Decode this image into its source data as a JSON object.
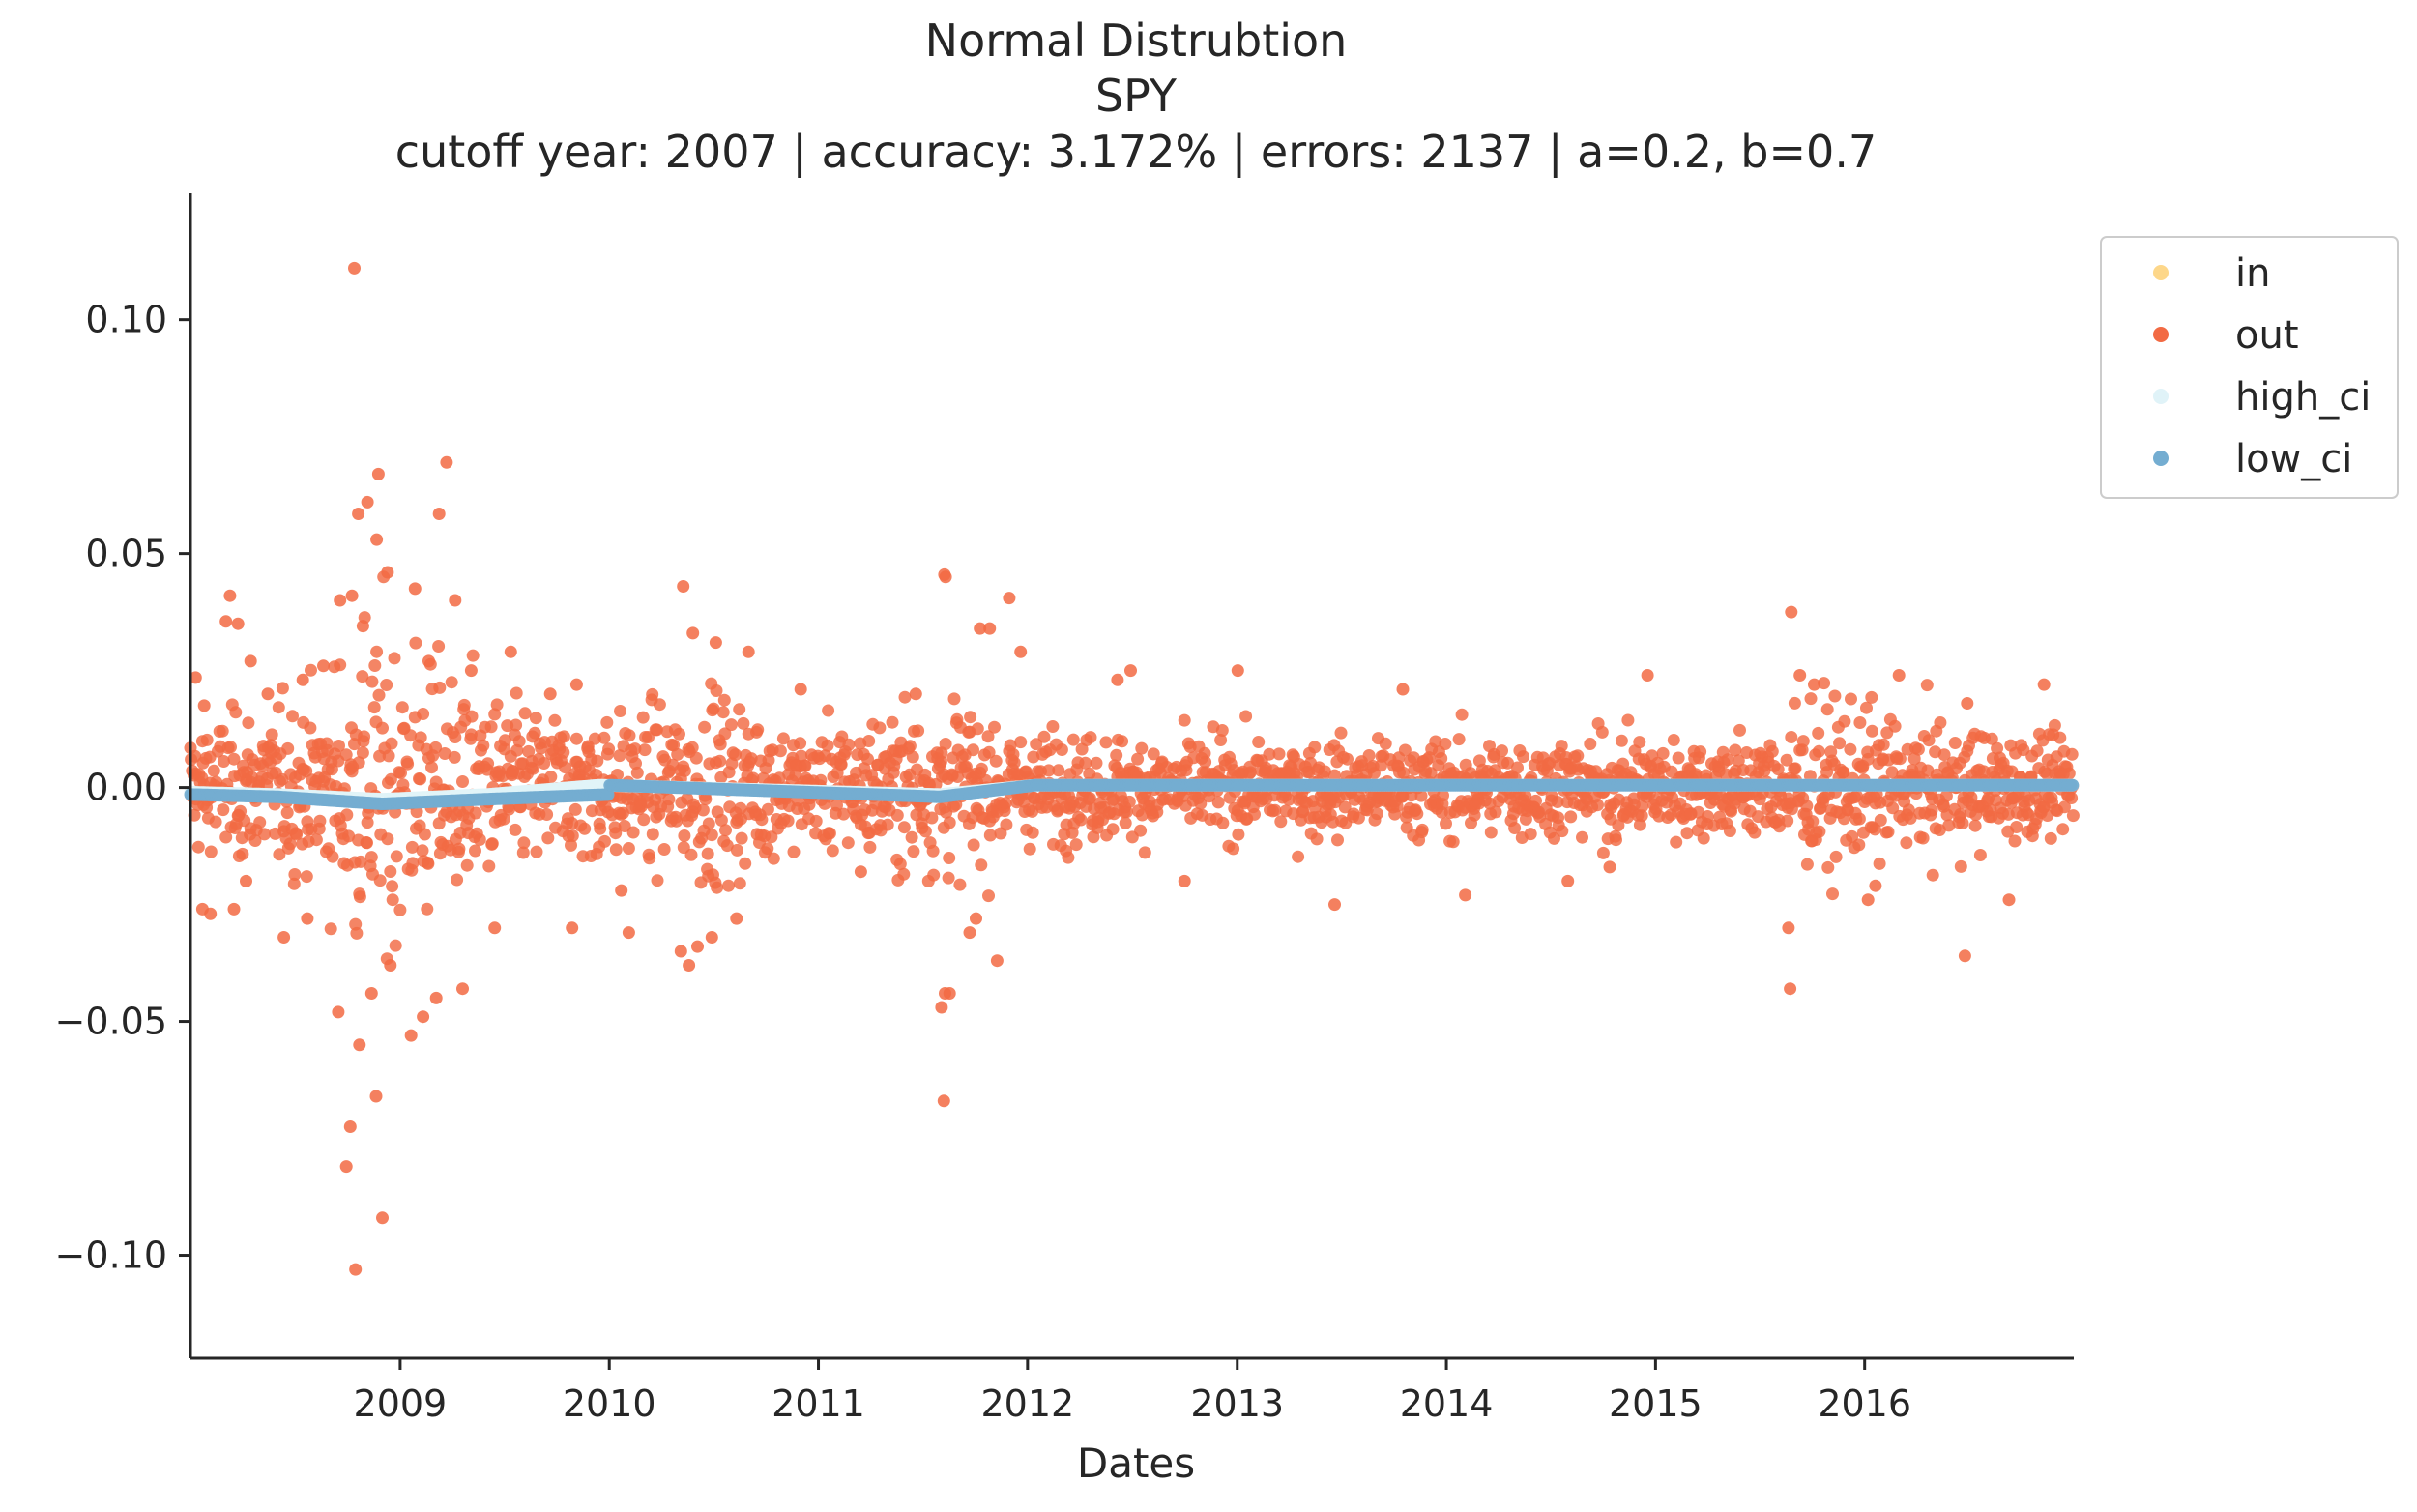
{
  "chart_data": {
    "type": "scatter",
    "title_lines": [
      "Normal Distrubtion",
      "SPY",
      "cutoff year: 2007 | accuracy: 3.172% | errors: 2137 | a=0.2, b=0.7"
    ],
    "xlabel": "Dates",
    "ylabel": "",
    "x_range": [
      "2008-01-01",
      "2016-12-31"
    ],
    "ylim": [
      -0.122,
      0.127
    ],
    "x_ticks": [
      "2009",
      "2010",
      "2011",
      "2012",
      "2013",
      "2014",
      "2015",
      "2016"
    ],
    "x_tick_dates": [
      "2009-01-01",
      "2010-01-01",
      "2011-01-01",
      "2012-01-01",
      "2013-01-01",
      "2014-01-01",
      "2015-01-01",
      "2016-01-01"
    ],
    "y_ticks": [
      0.1,
      0.05,
      0.0,
      -0.05,
      -0.1
    ],
    "y_tick_labels": [
      "0.10",
      "0.05",
      "0.00",
      "−0.05",
      "−0.10"
    ],
    "grid": false,
    "legend_position": "upper-right-outside",
    "series": [
      {
        "name": "in",
        "color": "#fdd78a",
        "points": []
      },
      {
        "name": "out",
        "color": "#f26a43",
        "points": [
          {
            "x": "2008-01-10",
            "y": 0.0235
          },
          {
            "x": "2008-01-22",
            "y": -0.026
          },
          {
            "x": "2008-01-25",
            "y": 0.0175
          },
          {
            "x": "2008-02-05",
            "y": -0.027
          },
          {
            "x": "2008-03-03",
            "y": 0.0355
          },
          {
            "x": "2008-03-10",
            "y": 0.041
          },
          {
            "x": "2008-03-17",
            "y": -0.026
          },
          {
            "x": "2008-03-24",
            "y": 0.035
          },
          {
            "x": "2008-04-07",
            "y": -0.02
          },
          {
            "x": "2008-04-15",
            "y": 0.027
          },
          {
            "x": "2008-05-15",
            "y": 0.02
          },
          {
            "x": "2008-06-12",
            "y": -0.032
          },
          {
            "x": "2008-07-15",
            "y": 0.023
          },
          {
            "x": "2008-07-23",
            "y": -0.028
          },
          {
            "x": "2008-08-20",
            "y": 0.026
          },
          {
            "x": "2008-09-15",
            "y": -0.048
          },
          {
            "x": "2008-09-18",
            "y": 0.04
          },
          {
            "x": "2008-09-29",
            "y": -0.081
          },
          {
            "x": "2008-10-06",
            "y": -0.0725
          },
          {
            "x": "2008-10-09",
            "y": 0.041
          },
          {
            "x": "2008-10-13",
            "y": 0.111
          },
          {
            "x": "2008-10-15",
            "y": -0.103
          },
          {
            "x": "2008-10-20",
            "y": 0.0585
          },
          {
            "x": "2008-10-22",
            "y": -0.055
          },
          {
            "x": "2008-10-28",
            "y": 0.0345
          },
          {
            "x": "2008-11-05",
            "y": 0.061
          },
          {
            "x": "2008-11-12",
            "y": -0.044
          },
          {
            "x": "2008-11-20",
            "y": -0.066
          },
          {
            "x": "2008-11-21",
            "y": 0.053
          },
          {
            "x": "2008-11-24",
            "y": 0.067
          },
          {
            "x": "2008-12-01",
            "y": -0.092
          },
          {
            "x": "2008-12-10",
            "y": 0.046
          },
          {
            "x": "2008-12-15",
            "y": -0.038
          },
          {
            "x": "2009-01-20",
            "y": -0.053
          },
          {
            "x": "2009-01-27",
            "y": 0.0425
          },
          {
            "x": "2009-02-10",
            "y": -0.049
          },
          {
            "x": "2009-02-20",
            "y": 0.027
          },
          {
            "x": "2009-03-05",
            "y": -0.045
          },
          {
            "x": "2009-03-10",
            "y": 0.0585
          },
          {
            "x": "2009-03-23",
            "y": 0.0695
          },
          {
            "x": "2009-04-07",
            "y": 0.04
          },
          {
            "x": "2009-04-20",
            "y": -0.043
          },
          {
            "x": "2009-05-05",
            "y": 0.025
          },
          {
            "x": "2009-06-15",
            "y": -0.03
          },
          {
            "x": "2009-07-13",
            "y": 0.029
          },
          {
            "x": "2009-09-20",
            "y": 0.02
          },
          {
            "x": "2009-10-28",
            "y": -0.03
          },
          {
            "x": "2009-11-05",
            "y": 0.022
          },
          {
            "x": "2010-01-22",
            "y": -0.022
          },
          {
            "x": "2010-02-04",
            "y": -0.031
          },
          {
            "x": "2010-05-06",
            "y": -0.035
          },
          {
            "x": "2010-05-10",
            "y": 0.043
          },
          {
            "x": "2010-05-20",
            "y": -0.038
          },
          {
            "x": "2010-05-27",
            "y": 0.033
          },
          {
            "x": "2010-06-04",
            "y": -0.034
          },
          {
            "x": "2010-06-29",
            "y": -0.032
          },
          {
            "x": "2010-07-06",
            "y": 0.031
          },
          {
            "x": "2010-08-11",
            "y": -0.028
          },
          {
            "x": "2010-09-01",
            "y": 0.029
          },
          {
            "x": "2010-12-01",
            "y": 0.021
          },
          {
            "x": "2011-03-16",
            "y": -0.018
          },
          {
            "x": "2011-06-20",
            "y": 0.02
          },
          {
            "x": "2011-08-04",
            "y": -0.047
          },
          {
            "x": "2011-08-08",
            "y": -0.067
          },
          {
            "x": "2011-08-09",
            "y": 0.0455
          },
          {
            "x": "2011-08-10",
            "y": -0.044
          },
          {
            "x": "2011-08-11",
            "y": 0.045
          },
          {
            "x": "2011-08-18",
            "y": -0.044
          },
          {
            "x": "2011-09-22",
            "y": -0.031
          },
          {
            "x": "2011-10-03",
            "y": -0.028
          },
          {
            "x": "2011-10-10",
            "y": 0.034
          },
          {
            "x": "2011-10-27",
            "y": 0.034
          },
          {
            "x": "2011-11-09",
            "y": -0.037
          },
          {
            "x": "2011-11-30",
            "y": 0.0405
          },
          {
            "x": "2011-12-20",
            "y": 0.029
          },
          {
            "x": "2012-06-06",
            "y": 0.023
          },
          {
            "x": "2012-06-29",
            "y": 0.025
          },
          {
            "x": "2012-10-01",
            "y": -0.02
          },
          {
            "x": "2013-01-02",
            "y": 0.025
          },
          {
            "x": "2013-06-20",
            "y": -0.025
          },
          {
            "x": "2013-10-17",
            "y": 0.021
          },
          {
            "x": "2014-02-03",
            "y": -0.023
          },
          {
            "x": "2014-08-01",
            "y": -0.02
          },
          {
            "x": "2014-10-13",
            "y": -0.017
          },
          {
            "x": "2014-12-18",
            "y": 0.024
          },
          {
            "x": "2015-08-21",
            "y": -0.03
          },
          {
            "x": "2015-08-24",
            "y": -0.043
          },
          {
            "x": "2015-08-26",
            "y": 0.0375
          },
          {
            "x": "2015-09-10",
            "y": 0.024
          },
          {
            "x": "2015-10-05",
            "y": 0.022
          },
          {
            "x": "2016-01-07",
            "y": -0.024
          },
          {
            "x": "2016-01-20",
            "y": -0.021
          },
          {
            "x": "2016-03-01",
            "y": 0.024
          },
          {
            "x": "2016-06-24",
            "y": -0.036
          },
          {
            "x": "2016-06-28",
            "y": 0.018
          },
          {
            "x": "2016-09-09",
            "y": -0.024
          },
          {
            "x": "2016-11-09",
            "y": 0.022
          }
        ]
      },
      {
        "name": "high_ci",
        "color": "#e0f3f8",
        "points": [
          {
            "x": "2008-01-01",
            "y": -0.001
          },
          {
            "x": "2008-06-01",
            "y": -0.0015
          },
          {
            "x": "2008-12-01",
            "y": -0.0025
          },
          {
            "x": "2009-06-01",
            "y": -0.0015
          },
          {
            "x": "2009-12-15",
            "y": 0.0005
          },
          {
            "x": "2011-08-01",
            "y": -0.0015
          },
          {
            "x": "2012-01-15",
            "y": 0.0005
          },
          {
            "x": "2016-12-31",
            "y": 0.0005
          }
        ]
      },
      {
        "name": "low_ci",
        "color": "#74add1",
        "points": [
          {
            "x": "2008-01-01",
            "y": -0.0015
          },
          {
            "x": "2008-06-01",
            "y": -0.002
          },
          {
            "x": "2008-12-01",
            "y": -0.0035
          },
          {
            "x": "2009-06-01",
            "y": -0.0025
          },
          {
            "x": "2009-12-31",
            "y": -0.0015
          },
          {
            "x": "2010-01-01",
            "y": 0.0005
          },
          {
            "x": "2011-08-01",
            "y": -0.002
          },
          {
            "x": "2012-01-15",
            "y": 0.0005
          },
          {
            "x": "2016-12-31",
            "y": 0.0005
          }
        ]
      }
    ]
  }
}
